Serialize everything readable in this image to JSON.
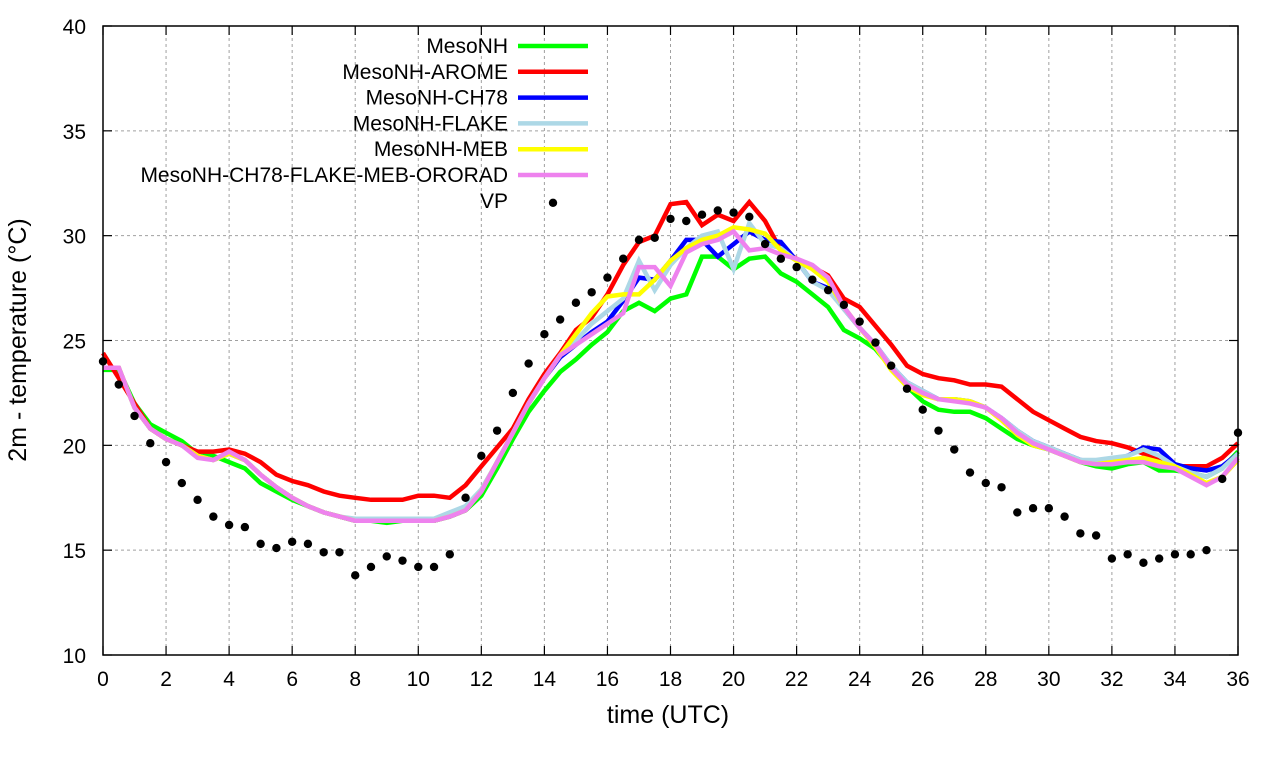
{
  "chart_data": {
    "type": "line",
    "title": "",
    "xlabel": "time (UTC)",
    "ylabel": "2m - temperature (°C)",
    "xlim": [
      0,
      36
    ],
    "ylim": [
      10,
      40
    ],
    "xticks": [
      0,
      2,
      4,
      6,
      8,
      10,
      12,
      14,
      16,
      18,
      20,
      22,
      24,
      26,
      28,
      30,
      32,
      34,
      36
    ],
    "yticks": [
      10,
      15,
      20,
      25,
      30,
      35,
      40
    ],
    "grid": true,
    "legend_placement": "top-left",
    "x_step_hours": 0.5,
    "series": [
      {
        "name": "MesoNH",
        "color": "#00ff00",
        "style": "line",
        "values": [
          23.6,
          23.6,
          22.0,
          21.0,
          20.6,
          20.2,
          19.6,
          19.5,
          19.2,
          18.9,
          18.2,
          17.8,
          17.4,
          17.1,
          16.8,
          16.6,
          16.4,
          16.4,
          16.3,
          16.4,
          16.4,
          16.4,
          16.6,
          16.9,
          17.6,
          18.9,
          20.3,
          21.6,
          22.6,
          23.5,
          24.1,
          24.8,
          25.4,
          26.4,
          26.8,
          26.4,
          27.0,
          27.2,
          29.0,
          29.0,
          28.4,
          28.9,
          29.0,
          28.2,
          27.8,
          27.2,
          26.6,
          25.5,
          25.1,
          24.6,
          23.7,
          22.8,
          22.1,
          21.7,
          21.6,
          21.6,
          21.3,
          20.8,
          20.3,
          20.0,
          19.8,
          19.5,
          19.2,
          19.0,
          18.9,
          19.1,
          19.2,
          18.8,
          18.8,
          18.7,
          18.5,
          18.9,
          19.7
        ]
      },
      {
        "name": "MesoNH-AROME",
        "color": "#ff0000",
        "style": "line",
        "values": [
          24.4,
          23.2,
          22.0,
          20.8,
          20.3,
          20.0,
          19.7,
          19.7,
          19.8,
          19.6,
          19.2,
          18.6,
          18.3,
          18.1,
          17.8,
          17.6,
          17.5,
          17.4,
          17.4,
          17.4,
          17.6,
          17.6,
          17.5,
          18.1,
          19.0,
          19.9,
          20.8,
          22.2,
          23.4,
          24.4,
          25.5,
          26.1,
          27.2,
          28.6,
          29.7,
          30.0,
          31.5,
          31.6,
          30.5,
          31.0,
          30.7,
          31.6,
          30.7,
          29.3,
          28.9,
          28.5,
          28.1,
          27.0,
          26.6,
          25.7,
          24.8,
          23.8,
          23.4,
          23.2,
          23.1,
          22.9,
          22.9,
          22.8,
          22.2,
          21.6,
          21.2,
          20.8,
          20.4,
          20.2,
          20.1,
          19.9,
          19.6,
          19.3,
          19.0,
          19.0,
          19.0,
          19.4,
          20.1
        ]
      },
      {
        "name": "MesoNH-CH78",
        "color": "#0000ff",
        "style": "line",
        "values": [
          23.7,
          23.7,
          21.8,
          20.8,
          20.3,
          20.0,
          19.5,
          19.3,
          19.6,
          19.3,
          18.6,
          18.0,
          17.5,
          17.1,
          16.8,
          16.6,
          16.4,
          16.4,
          16.4,
          16.4,
          16.4,
          16.4,
          16.6,
          16.9,
          17.8,
          19.2,
          20.6,
          22.0,
          23.2,
          24.2,
          24.8,
          25.4,
          25.9,
          26.9,
          28.0,
          27.9,
          28.8,
          29.8,
          29.8,
          29.0,
          29.6,
          30.2,
          29.8,
          29.7,
          28.8,
          27.8,
          27.5,
          26.5,
          25.6,
          24.8,
          23.8,
          23.0,
          22.6,
          22.2,
          22.2,
          22.1,
          21.8,
          21.3,
          20.7,
          20.2,
          19.9,
          19.6,
          19.3,
          19.2,
          19.3,
          19.5,
          19.9,
          19.8,
          19.1,
          18.9,
          18.8,
          19.0,
          19.6
        ]
      },
      {
        "name": "MesoNH-FLAKE",
        "color": "#add8e6",
        "style": "line",
        "values": [
          23.7,
          23.7,
          21.8,
          20.8,
          20.3,
          20.0,
          19.5,
          19.3,
          19.6,
          19.3,
          18.6,
          18.0,
          17.5,
          17.1,
          16.8,
          16.6,
          16.5,
          16.5,
          16.5,
          16.5,
          16.5,
          16.5,
          16.8,
          17.1,
          17.9,
          19.2,
          20.6,
          22.0,
          23.2,
          24.3,
          25.0,
          25.8,
          26.4,
          27.0,
          28.8,
          27.4,
          28.6,
          29.4,
          30.0,
          30.2,
          28.4,
          30.6,
          29.6,
          29.4,
          28.8,
          27.8,
          27.4,
          26.5,
          25.6,
          24.8,
          23.8,
          23.0,
          22.6,
          22.2,
          22.2,
          22.1,
          21.8,
          21.3,
          20.7,
          20.2,
          19.9,
          19.6,
          19.3,
          19.3,
          19.4,
          19.5,
          19.8,
          19.5,
          19.0,
          18.7,
          18.5,
          18.9,
          19.6
        ]
      },
      {
        "name": "MesoNH-MEB",
        "color": "#ffff00",
        "style": "line",
        "values": [
          23.7,
          23.7,
          21.8,
          20.8,
          20.3,
          20.0,
          19.5,
          19.3,
          19.6,
          19.3,
          18.6,
          18.0,
          17.5,
          17.1,
          16.8,
          16.6,
          16.4,
          16.4,
          16.4,
          16.4,
          16.4,
          16.4,
          16.6,
          16.9,
          17.8,
          19.2,
          20.6,
          22.0,
          23.2,
          24.3,
          25.3,
          26.3,
          27.1,
          27.2,
          27.2,
          27.9,
          28.8,
          29.4,
          29.8,
          30.0,
          30.4,
          30.3,
          30.1,
          29.3,
          28.8,
          28.4,
          27.8,
          26.6,
          25.6,
          24.7,
          23.6,
          22.8,
          22.4,
          22.2,
          22.2,
          22.1,
          21.8,
          21.2,
          20.5,
          20.0,
          19.8,
          19.5,
          19.2,
          19.1,
          19.2,
          19.3,
          19.4,
          19.2,
          19.0,
          18.6,
          18.2,
          18.5,
          19.3
        ]
      },
      {
        "name": "MesoNH-CH78-FLAKE-MEB-ORORAD",
        "color": "#ee82ee",
        "style": "line",
        "values": [
          23.7,
          23.7,
          21.8,
          20.8,
          20.3,
          20.0,
          19.4,
          19.3,
          19.7,
          19.3,
          18.6,
          18.0,
          17.5,
          17.1,
          16.8,
          16.6,
          16.4,
          16.4,
          16.4,
          16.4,
          16.4,
          16.4,
          16.6,
          16.9,
          17.8,
          19.2,
          20.6,
          22.0,
          23.2,
          24.3,
          24.8,
          25.3,
          25.8,
          26.3,
          28.5,
          28.5,
          27.6,
          29.2,
          29.6,
          29.8,
          30.2,
          29.3,
          29.4,
          29.1,
          28.9,
          28.6,
          28.0,
          26.6,
          25.6,
          24.8,
          23.7,
          22.9,
          22.5,
          22.2,
          22.1,
          22.0,
          21.8,
          21.3,
          20.6,
          20.1,
          19.8,
          19.5,
          19.2,
          19.1,
          19.1,
          19.2,
          19.2,
          19.0,
          18.9,
          18.5,
          18.1,
          18.5,
          19.4
        ]
      },
      {
        "name": "VP",
        "color": "#000000",
        "style": "points",
        "values": [
          24.0,
          22.9,
          21.4,
          20.1,
          19.2,
          18.2,
          17.4,
          16.6,
          16.2,
          16.1,
          15.3,
          15.1,
          15.4,
          15.3,
          14.9,
          14.9,
          13.8,
          14.2,
          14.7,
          14.5,
          14.2,
          14.2,
          14.8,
          17.5,
          19.5,
          20.7,
          22.5,
          23.9,
          25.3,
          26.0,
          26.8,
          27.3,
          28.0,
          28.9,
          29.8,
          29.9,
          30.8,
          30.7,
          31.0,
          31.2,
          31.1,
          30.9,
          29.6,
          28.9,
          28.5,
          27.9,
          27.4,
          26.7,
          25.9,
          24.9,
          23.8,
          22.7,
          21.7,
          20.7,
          19.8,
          18.7,
          18.2,
          18.0,
          16.8,
          17.0,
          17.0,
          16.6,
          15.8,
          15.7,
          14.6,
          14.8,
          14.4,
          14.6,
          14.8,
          14.8,
          15.0,
          18.4,
          20.6
        ]
      }
    ]
  }
}
